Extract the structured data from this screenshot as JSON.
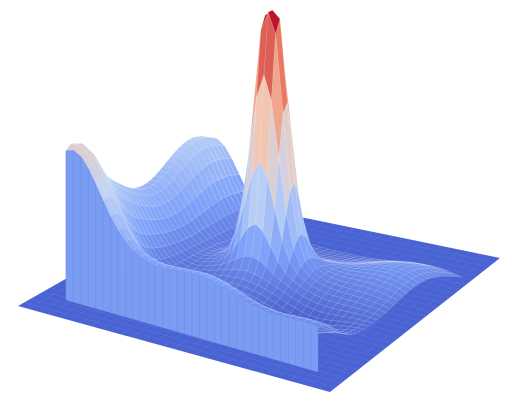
{
  "chart_data": {
    "type": "surface3d",
    "colormap": [
      "#3b4cc0",
      "#7b9ff9",
      "#c0d4f5",
      "#f2cbb7",
      "#ee8468",
      "#b40426"
    ],
    "base_color": "#4a63d3",
    "grid": false,
    "axes_visible": false,
    "z_range": [
      0,
      1
    ],
    "surface_description_values": {
      "peak": {
        "x": 0.5,
        "y": 0.55,
        "z": 1.0
      },
      "edge_level": 0.3,
      "floor_level": 0.0
    }
  }
}
